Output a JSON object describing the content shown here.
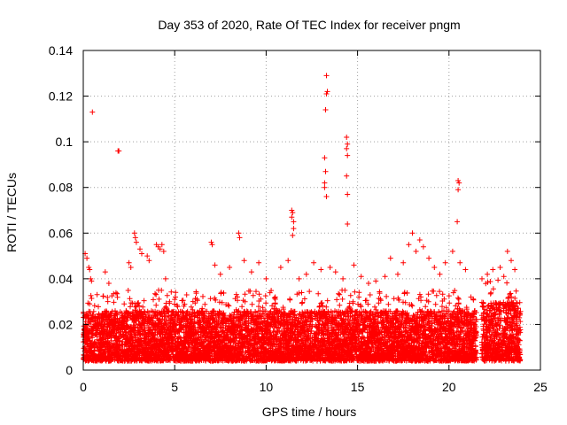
{
  "chart_data": {
    "type": "scatter",
    "title": "Day 353 of 2020, Rate Of TEC Index for receiver pngm",
    "xlabel": "GPS time / hours",
    "ylabel": "ROTI / TECUs",
    "xlim": [
      0,
      25
    ],
    "ylim": [
      0,
      0.14
    ],
    "xticks": [
      0,
      5,
      10,
      15,
      20,
      25
    ],
    "xtick_labels": [
      "0",
      "5",
      "10",
      "15",
      "20",
      "25"
    ],
    "yticks": [
      0,
      0.02,
      0.04,
      0.06,
      0.08,
      0.1,
      0.12,
      0.14
    ],
    "ytick_labels": [
      "0",
      "0.02",
      "0.04",
      "0.06",
      "0.08",
      "0.1",
      "0.12",
      "0.14"
    ],
    "grid": true,
    "marker": "+",
    "color": "#ff0000",
    "series": [
      {
        "name": "ROTI",
        "x": [
          0.5,
          1.9,
          1.95,
          13.3,
          13.35,
          13.3,
          13.25,
          13.2,
          13.25,
          13.2,
          13.2,
          13.3,
          14.4,
          14.45,
          14.4,
          14.45,
          14.4,
          14.4,
          14.45,
          14.45,
          20.5,
          20.55,
          20.5,
          20.45,
          11.4,
          11.45,
          11.4,
          11.5,
          11.5,
          11.45,
          8.5,
          8.55,
          7.0,
          7.05,
          2.8,
          2.85,
          2.9,
          3.1,
          3.2,
          4.0,
          4.1,
          4.2,
          4.3,
          4.4,
          0.1,
          0.2,
          0.3,
          0.35,
          0.4,
          0.45,
          1.2,
          1.4,
          2.5,
          2.6,
          3.5,
          3.6,
          4.5,
          5.0,
          5.5,
          6.0,
          6.5,
          7.2,
          7.5,
          8.0,
          8.8,
          9.2,
          9.6,
          10.0,
          10.5,
          10.8,
          11.2,
          11.8,
          12.2,
          12.6,
          13.0,
          13.5,
          13.8,
          14.2,
          14.8,
          15.2,
          15.6,
          16.0,
          16.5,
          16.8,
          17.2,
          17.5,
          17.8,
          18.0,
          18.2,
          18.4,
          18.6,
          18.9,
          19.2,
          19.5,
          19.8,
          20.2,
          20.6,
          20.9,
          21.2,
          21.8,
          22.1,
          22.4,
          22.8,
          23.0,
          23.2,
          23.4,
          23.6
        ],
        "y": [
          0.113,
          0.096,
          0.096,
          0.129,
          0.122,
          0.121,
          0.114,
          0.093,
          0.087,
          0.082,
          0.08,
          0.076,
          0.102,
          0.099,
          0.097,
          0.094,
          0.085,
          0.085,
          0.077,
          0.064,
          0.083,
          0.082,
          0.079,
          0.065,
          0.07,
          0.069,
          0.067,
          0.065,
          0.062,
          0.059,
          0.06,
          0.058,
          0.056,
          0.055,
          0.06,
          0.058,
          0.056,
          0.053,
          0.051,
          0.055,
          0.054,
          0.053,
          0.055,
          0.052,
          0.051,
          0.049,
          0.045,
          0.044,
          0.04,
          0.039,
          0.043,
          0.038,
          0.047,
          0.045,
          0.05,
          0.048,
          0.04,
          0.031,
          0.028,
          0.03,
          0.027,
          0.046,
          0.042,
          0.045,
          0.048,
          0.043,
          0.047,
          0.04,
          0.032,
          0.045,
          0.048,
          0.04,
          0.042,
          0.047,
          0.044,
          0.045,
          0.043,
          0.04,
          0.046,
          0.041,
          0.038,
          0.039,
          0.041,
          0.049,
          0.042,
          0.047,
          0.055,
          0.06,
          0.052,
          0.057,
          0.054,
          0.049,
          0.045,
          0.042,
          0.047,
          0.052,
          0.047,
          0.044,
          0.032,
          0.04,
          0.042,
          0.044,
          0.045,
          0.041,
          0.052,
          0.048,
          0.044
        ]
      }
    ],
    "dense_bands": [
      {
        "x_range": [
          0.0,
          21.5
        ],
        "y_range": [
          0.004,
          0.035
        ],
        "typical": 0.015
      },
      {
        "x_range": [
          21.8,
          23.9
        ],
        "y_range": [
          0.004,
          0.04
        ],
        "typical": 0.017
      }
    ]
  }
}
